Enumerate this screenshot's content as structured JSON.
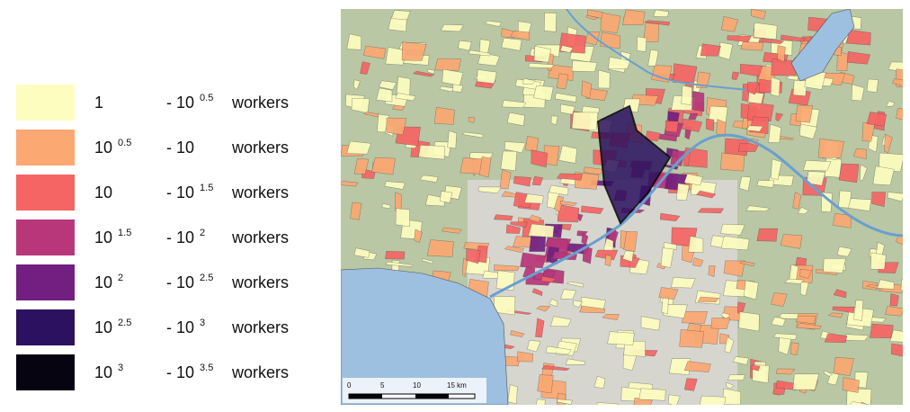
{
  "legend": {
    "items": [
      {
        "color": "#fdfdbf",
        "from": "1",
        "to": "- 10",
        "to_exp": "0.5",
        "unit": "workers"
      },
      {
        "color": "#fba872",
        "from": "10",
        "from_exp": "0.5",
        "to": "- 10",
        "unit": "workers"
      },
      {
        "color": "#f56563",
        "from": "10",
        "to": "- 10",
        "to_exp": "1.5",
        "unit": "workers"
      },
      {
        "color": "#b8367a",
        "from": "10",
        "from_exp": "1.5",
        "to": "- 10",
        "to_exp": "2",
        "unit": "workers"
      },
      {
        "color": "#731f81",
        "from": "10",
        "from_exp": "2",
        "to": "- 10",
        "to_exp": "2.5",
        "unit": "workers"
      },
      {
        "color": "#2b1160",
        "from": "10",
        "from_exp": "2.5",
        "to": "- 10",
        "to_exp": "3",
        "unit": "workers"
      },
      {
        "color": "#050410",
        "from": "10",
        "from_exp": "3",
        "to": "- 10",
        "to_exp": "3.5",
        "unit": "workers"
      }
    ]
  },
  "map": {
    "scale_bar": {
      "labels": [
        "0",
        "5",
        "10",
        "15 km"
      ]
    }
  }
}
